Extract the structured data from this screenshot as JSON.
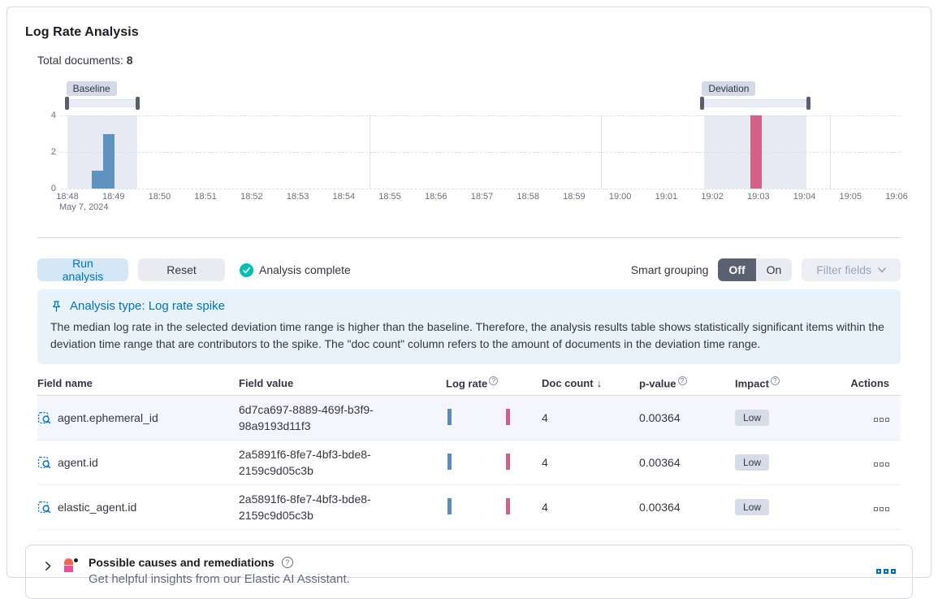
{
  "header": {
    "title": "Log Rate Analysis",
    "total_documents_label": "Total documents:",
    "total_documents_value": "8"
  },
  "colors": {
    "primary": "#0071c2",
    "baseline_bar": "#6092c0",
    "deviation_bar": "#d4608a",
    "success_check": "#00bfb3",
    "callout_bg": "#e8f2fb",
    "badge_bg": "#d3dae6"
  },
  "chart": {
    "type": "bar",
    "baseline_label": "Baseline",
    "deviation_label": "Deviation",
    "date_label": "May 7, 2024",
    "y_ticks": [
      4,
      2,
      0
    ],
    "y_max": 4,
    "x_ticks": [
      "18:48",
      "18:49",
      "18:50",
      "18:51",
      "18:52",
      "18:53",
      "18:54",
      "18:55",
      "18:56",
      "18:57",
      "18:58",
      "18:59",
      "19:00",
      "19:01",
      "19:02",
      "19:03",
      "19:04",
      "19:05",
      "19:06"
    ],
    "vgrid_minutes": [
      6.7,
      11.72,
      16.7
    ],
    "baseline_region": {
      "start_min": 0.14,
      "end_min": 1.66
    },
    "deviation_region": {
      "start_min": 13.97,
      "end_min": 16.19
    },
    "baseline_brush": {
      "start_min": 0.1,
      "end_min": 1.7
    },
    "deviation_brush": {
      "start_min": 13.9,
      "end_min": 16.26
    },
    "bars": [
      {
        "offset_min": 0.67,
        "width_min": 0.25,
        "value": 1,
        "series": "baseline"
      },
      {
        "offset_min": 0.92,
        "width_min": 0.25,
        "value": 3,
        "series": "baseline"
      },
      {
        "offset_min": 14.97,
        "width_min": 0.25,
        "value": 4,
        "series": "deviation"
      }
    ]
  },
  "controls": {
    "run_analysis": "Run analysis",
    "reset": "Reset",
    "status": "Analysis complete",
    "smart_grouping_label": "Smart grouping",
    "off": "Off",
    "on": "On",
    "filter_fields": "Filter fields"
  },
  "callout": {
    "title": "Analysis type: Log rate spike",
    "body": "The median log rate in the selected deviation time range is higher than the baseline. Therefore, the analysis results table shows statistically significant items within the deviation time range that are contributors to the spike. The \"doc count\" column refers to the amount of documents in the deviation time range."
  },
  "table": {
    "columns": [
      {
        "label": "Field name"
      },
      {
        "label": "Field value"
      },
      {
        "label": "Log rate",
        "info": true
      },
      {
        "label": "Doc count",
        "sort": "desc"
      },
      {
        "label": "p-value",
        "info": true
      },
      {
        "label": "Impact",
        "info": true
      },
      {
        "label": "Actions"
      }
    ],
    "rows": [
      {
        "field_name": "agent.ephemeral_id",
        "field_value": "6d7ca697-8889-469f-b3f9-98a9193d11f3",
        "doc_count": "4",
        "p_value": "0.00364",
        "impact": "Low"
      },
      {
        "field_name": "agent.id",
        "field_value": "2a5891f6-8fe7-4bf3-bde8-2159c9d05c3b",
        "doc_count": "4",
        "p_value": "0.00364",
        "impact": "Low"
      },
      {
        "field_name": "elastic_agent.id",
        "field_value": "2a5891f6-8fe7-4bf3-bde8-2159c9d05c3b",
        "doc_count": "4",
        "p_value": "0.00364",
        "impact": "Low"
      }
    ]
  },
  "assistant_panel": {
    "title": "Possible causes and remediations",
    "subtitle": "Get helpful insights from our Elastic AI Assistant."
  }
}
